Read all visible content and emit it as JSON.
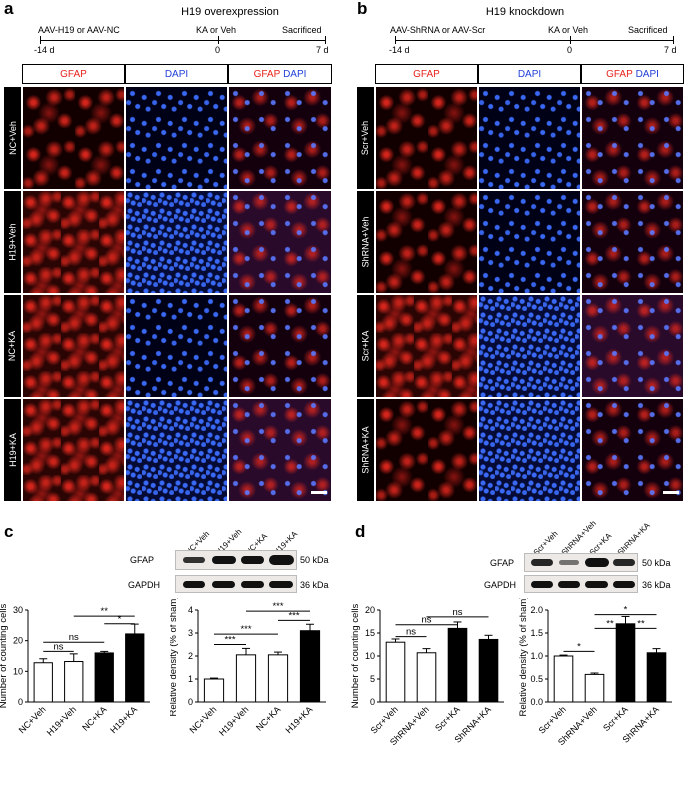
{
  "panels": {
    "a": {
      "letter": "a",
      "title": "H19 overexpression",
      "timeline": {
        "start_label": "AAV-H19 or AAV-NC",
        "mid_label": "KA or Veh",
        "end_label": "Sacrificed",
        "ticks": [
          "-14 d",
          "0",
          "7 d"
        ]
      },
      "columns": {
        "gfap": "GFAP",
        "dapi": "DAPI",
        "merge_gfap": "GFAP",
        "merge_dapi": "DAPI"
      },
      "rows": [
        "NC+Veh",
        "H19+Veh",
        "NC+KA",
        "H19+KA"
      ]
    },
    "b": {
      "letter": "b",
      "title": "H19 knockdown",
      "timeline": {
        "start_label": "AAV-ShRNA or AAV-Scr",
        "mid_label": "KA or Veh",
        "end_label": "Sacrificed",
        "ticks": [
          "-14 d",
          "0",
          "7 d"
        ]
      },
      "columns": {
        "gfap": "GFAP",
        "dapi": "DAPI",
        "merge_gfap": "GFAP",
        "merge_dapi": "DAPI"
      },
      "rows": [
        "Scr+Veh",
        "ShRNA+Veh",
        "Scr+KA",
        "ShRNA+KA"
      ]
    },
    "c": {
      "letter": "c",
      "blot": {
        "lanes": [
          "NC+Veh",
          "H19+Veh",
          "NC+KA",
          "H19+KA"
        ],
        "rows": [
          {
            "name": "GFAP",
            "kda": "50 kDa"
          },
          {
            "name": "GAPDH",
            "kda": "36 kDa"
          }
        ]
      }
    },
    "d": {
      "letter": "d",
      "blot": {
        "lanes": [
          "Scr+Veh",
          "ShRNA+Veh",
          "Scr+KA",
          "ShRNA+KA"
        ],
        "rows": [
          {
            "name": "GFAP",
            "kda": "50 kDa"
          },
          {
            "name": "GAPDH",
            "kda": "36 kDa"
          }
        ]
      }
    }
  },
  "chart_data": [
    {
      "id": "c-left",
      "type": "bar",
      "ylabel": "Number of counting cells",
      "ylim": [
        0,
        30
      ],
      "yticks": [
        0,
        10,
        20,
        30
      ],
      "categories": [
        "NC+Veh",
        "H19+Veh",
        "NC+KA",
        "H19+KA"
      ],
      "values": [
        12.8,
        13.2,
        16.0,
        22.2
      ],
      "errors": [
        1.3,
        2.5,
        0.5,
        3.2
      ],
      "fills": [
        "white",
        "white",
        "black",
        "black"
      ],
      "sig": [
        {
          "from": 0,
          "to": 1,
          "label": "ns",
          "y": 16.5
        },
        {
          "from": 0,
          "to": 2,
          "label": "ns",
          "y": 19.5
        },
        {
          "from": 2,
          "to": 3,
          "label": "*",
          "y": 25.5
        },
        {
          "from": 1,
          "to": 3,
          "label": "**",
          "y": 28.0
        }
      ]
    },
    {
      "id": "c-right",
      "type": "bar",
      "ylabel": "Relative density (% of sham)",
      "ylim": [
        0,
        4
      ],
      "yticks": [
        0,
        1,
        2,
        3,
        4
      ],
      "categories": [
        "NC+Veh",
        "H19+Veh",
        "NC+KA",
        "H19+KA"
      ],
      "values": [
        1.0,
        2.05,
        2.05,
        3.1
      ],
      "errors": [
        0.04,
        0.28,
        0.12,
        0.28
      ],
      "fills": [
        "white",
        "white",
        "white",
        "black"
      ],
      "sig": [
        {
          "from": 0,
          "to": 1,
          "label": "***",
          "y": 2.5
        },
        {
          "from": 0,
          "to": 2,
          "label": "***",
          "y": 2.95
        },
        {
          "from": 2,
          "to": 3,
          "label": "***",
          "y": 3.55
        },
        {
          "from": 1,
          "to": 3,
          "label": "***",
          "y": 3.95
        }
      ]
    },
    {
      "id": "d-left",
      "type": "bar",
      "ylabel": "Number of counting cells",
      "ylim": [
        0,
        20
      ],
      "yticks": [
        0,
        5,
        10,
        15,
        20
      ],
      "categories": [
        "Scr+Veh",
        "ShRNA+Veh",
        "Scr+KA",
        "ShRNA+KA"
      ],
      "values": [
        13.0,
        10.7,
        16.0,
        13.6
      ],
      "errors": [
        0.7,
        0.9,
        1.4,
        0.9
      ],
      "fills": [
        "white",
        "white",
        "black",
        "black"
      ],
      "sig": [
        {
          "from": 0,
          "to": 1,
          "label": "ns",
          "y": 14.2
        },
        {
          "from": 0,
          "to": 2,
          "label": "ns",
          "y": 16.8
        },
        {
          "from": 1,
          "to": 3,
          "label": "ns",
          "y": 18.5
        }
      ]
    },
    {
      "id": "d-right",
      "type": "bar",
      "ylabel": "Relative density (% of sham)",
      "ylim": [
        0,
        2.0
      ],
      "yticks": [
        0.0,
        0.5,
        1.0,
        1.5,
        2.0
      ],
      "categories": [
        "Scr+Veh",
        "ShRNA+Veh",
        "Scr+KA",
        "ShRNA+KA"
      ],
      "values": [
        1.0,
        0.6,
        1.7,
        1.07
      ],
      "errors": [
        0.02,
        0.03,
        0.16,
        0.09
      ],
      "fills": [
        "white",
        "white",
        "black",
        "black"
      ],
      "sig": [
        {
          "from": 0,
          "to": 1,
          "label": "*",
          "y": 1.1
        },
        {
          "from": 2,
          "to": 3,
          "label": "**",
          "y": 1.6
        },
        {
          "from": 1,
          "to": 2,
          "label": "**",
          "y": 1.6
        },
        {
          "from": 1,
          "to": 3,
          "label": "*",
          "y": 1.9
        }
      ]
    }
  ]
}
